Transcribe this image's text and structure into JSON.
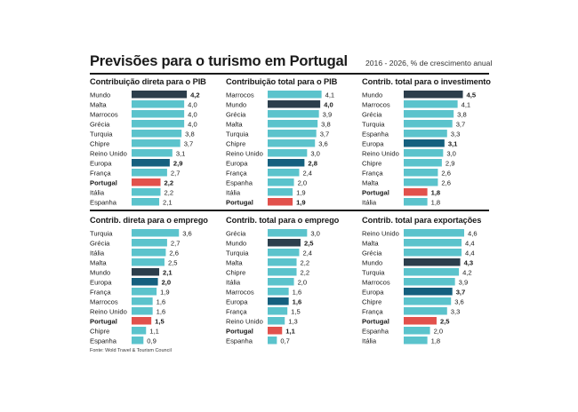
{
  "header": {
    "title": "Previsões para o turismo em Portugal",
    "subtitle": "2016 - 2026, % de crescimento anual"
  },
  "source": "Fonte: Wold Travel & Tourism Council",
  "colors": {
    "default": "#5bc3cc",
    "world": "#2c3e4c",
    "europe": "#15607f",
    "portugal": "#e2514c"
  },
  "chart_data": [
    {
      "type": "bar",
      "orientation": "horizontal",
      "title": "Contribuição direta para o PIB",
      "categories": [
        "Mundo",
        "Malta",
        "Marrocos",
        "Grécia",
        "Turquia",
        "Chipre",
        "Reino Unido",
        "Europa",
        "França",
        "Portugal",
        "Itália",
        "Espanha"
      ],
      "values": [
        4.2,
        4.0,
        4.0,
        4.0,
        3.8,
        3.7,
        3.1,
        2.9,
        2.7,
        2.2,
        2.2,
        2.1
      ],
      "value_labels": [
        "4,2",
        "4,0",
        "4,0",
        "4,0",
        "3,8",
        "3,7",
        "3,1",
        "2,9",
        "2,7",
        "2,2",
        "2,2",
        "2,1"
      ],
      "xlim": [
        0,
        4.6
      ]
    },
    {
      "type": "bar",
      "orientation": "horizontal",
      "title": "Contribuição total para o PIB",
      "categories": [
        "Marrocos",
        "Mundo",
        "Grécia",
        "Malta",
        "Turquia",
        "Chipre",
        "Reino Unido",
        "Europa",
        "França",
        "Espanha",
        "Itália",
        "Portugal"
      ],
      "values": [
        4.1,
        4.0,
        3.9,
        3.8,
        3.7,
        3.6,
        3.0,
        2.8,
        2.4,
        2.0,
        1.9,
        1.9
      ],
      "value_labels": [
        "4,1",
        "4,0",
        "3,9",
        "3,8",
        "3,7",
        "3,6",
        "3,0",
        "2,8",
        "2,4",
        "2,0",
        "1,9",
        "1,9"
      ],
      "xlim": [
        0,
        4.6
      ]
    },
    {
      "type": "bar",
      "orientation": "horizontal",
      "title": "Contrib. total para o investimento",
      "categories": [
        "Mundo",
        "Marrocos",
        "Grécia",
        "Turquia",
        "Espanha",
        "Europa",
        "Reino Unido",
        "Chipre",
        "França",
        "Malta",
        "Portugal",
        "Itália"
      ],
      "values": [
        4.5,
        4.1,
        3.8,
        3.7,
        3.3,
        3.1,
        3.0,
        2.9,
        2.6,
        2.6,
        1.8,
        1.8
      ],
      "value_labels": [
        "4,5",
        "4,1",
        "3,8",
        "3,7",
        "3,3",
        "3,1",
        "3,0",
        "2,9",
        "2,6",
        "2,6",
        "1,8",
        "1,8"
      ],
      "xlim": [
        0,
        4.6
      ]
    },
    {
      "type": "bar",
      "orientation": "horizontal",
      "title": "Contrib. direta para o emprego",
      "categories": [
        "Turquia",
        "Grécia",
        "Itália",
        "Malta",
        "Mundo",
        "Europa",
        "França",
        "Marrocos",
        "Reino Unido",
        "Portugal",
        "Chipre",
        "Espanha"
      ],
      "values": [
        3.6,
        2.7,
        2.6,
        2.5,
        2.1,
        2.0,
        1.9,
        1.6,
        1.6,
        1.5,
        1.1,
        0.9
      ],
      "value_labels": [
        "3,6",
        "2,7",
        "2,6",
        "2,5",
        "2,1",
        "2,0",
        "1,9",
        "1,6",
        "1,6",
        "1,5",
        "1,1",
        "0,9"
      ],
      "xlim": [
        0,
        4.6
      ]
    },
    {
      "type": "bar",
      "orientation": "horizontal",
      "title": "Contrib. total para o emprego",
      "categories": [
        "Grécia",
        "Mundo",
        "Turquia",
        "Malta",
        "Chipre",
        "Itália",
        "Marrocos",
        "Europa",
        "França",
        "Reino Unido",
        "Portugal",
        "Espanha"
      ],
      "values": [
        3.0,
        2.5,
        2.4,
        2.2,
        2.2,
        2.0,
        1.6,
        1.6,
        1.5,
        1.3,
        1.1,
        0.7
      ],
      "value_labels": [
        "3,0",
        "2,5",
        "2,4",
        "2,2",
        "2,2",
        "2,0",
        "1,6",
        "1,6",
        "1,5",
        "1,3",
        "1,1",
        "0,7"
      ],
      "xlim": [
        0,
        4.6
      ]
    },
    {
      "type": "bar",
      "orientation": "horizontal",
      "title": "Contrib. total para exportações",
      "categories": [
        "Reino Unido",
        "Malta",
        "Grécia",
        "Mundo",
        "Turquia",
        "Marrocos",
        "Europa",
        "Chipre",
        "França",
        "Portugal",
        "Espanha",
        "Itália"
      ],
      "values": [
        4.6,
        4.4,
        4.4,
        4.3,
        4.2,
        3.9,
        3.7,
        3.6,
        3.3,
        2.5,
        2.0,
        1.8
      ],
      "value_labels": [
        "4,6",
        "4,4",
        "4,4",
        "4,3",
        "4,2",
        "3,9",
        "3,7",
        "3,6",
        "3,3",
        "2,5",
        "2,0",
        "1,8"
      ],
      "xlim": [
        0,
        4.6
      ]
    }
  ]
}
